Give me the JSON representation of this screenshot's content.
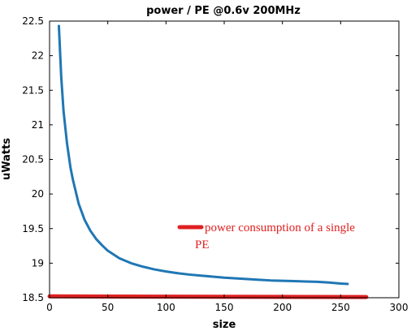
{
  "chart_data": {
    "type": "line",
    "title": "power / PE @0.6v 200MHz",
    "xlabel": "size",
    "ylabel": "uWatts",
    "xlim": [
      0,
      300
    ],
    "ylim": [
      18.5,
      22.5
    ],
    "xticks": [
      0,
      50,
      100,
      150,
      200,
      250,
      300
    ],
    "yticks": [
      18.5,
      19,
      19.5,
      20,
      20.5,
      21,
      21.5,
      22,
      22.5
    ],
    "grid": false,
    "series": [
      {
        "color": "#1f77b4",
        "x": [
          8,
          10,
          12,
          15,
          18,
          20,
          25,
          30,
          35,
          40,
          45,
          50,
          60,
          70,
          80,
          90,
          100,
          110,
          120,
          130,
          140,
          150,
          160,
          170,
          180,
          190,
          200,
          210,
          220,
          230,
          240,
          250,
          256
        ],
        "y": [
          22.43,
          21.7,
          21.2,
          20.73,
          20.38,
          20.21,
          19.86,
          19.63,
          19.47,
          19.35,
          19.26,
          19.18,
          19.07,
          19.0,
          18.95,
          18.91,
          18.88,
          18.855,
          18.835,
          18.82,
          18.805,
          18.79,
          18.78,
          18.77,
          18.76,
          18.75,
          18.745,
          18.74,
          18.735,
          18.73,
          18.72,
          18.705,
          18.7
        ]
      },
      {
        "color": "#e02020",
        "x": [
          0,
          272
        ],
        "y": [
          18.52,
          18.51
        ]
      }
    ],
    "annotation": {
      "line1": "power consumption of a single",
      "line2": "PE",
      "marker_color": "#e02020"
    }
  }
}
